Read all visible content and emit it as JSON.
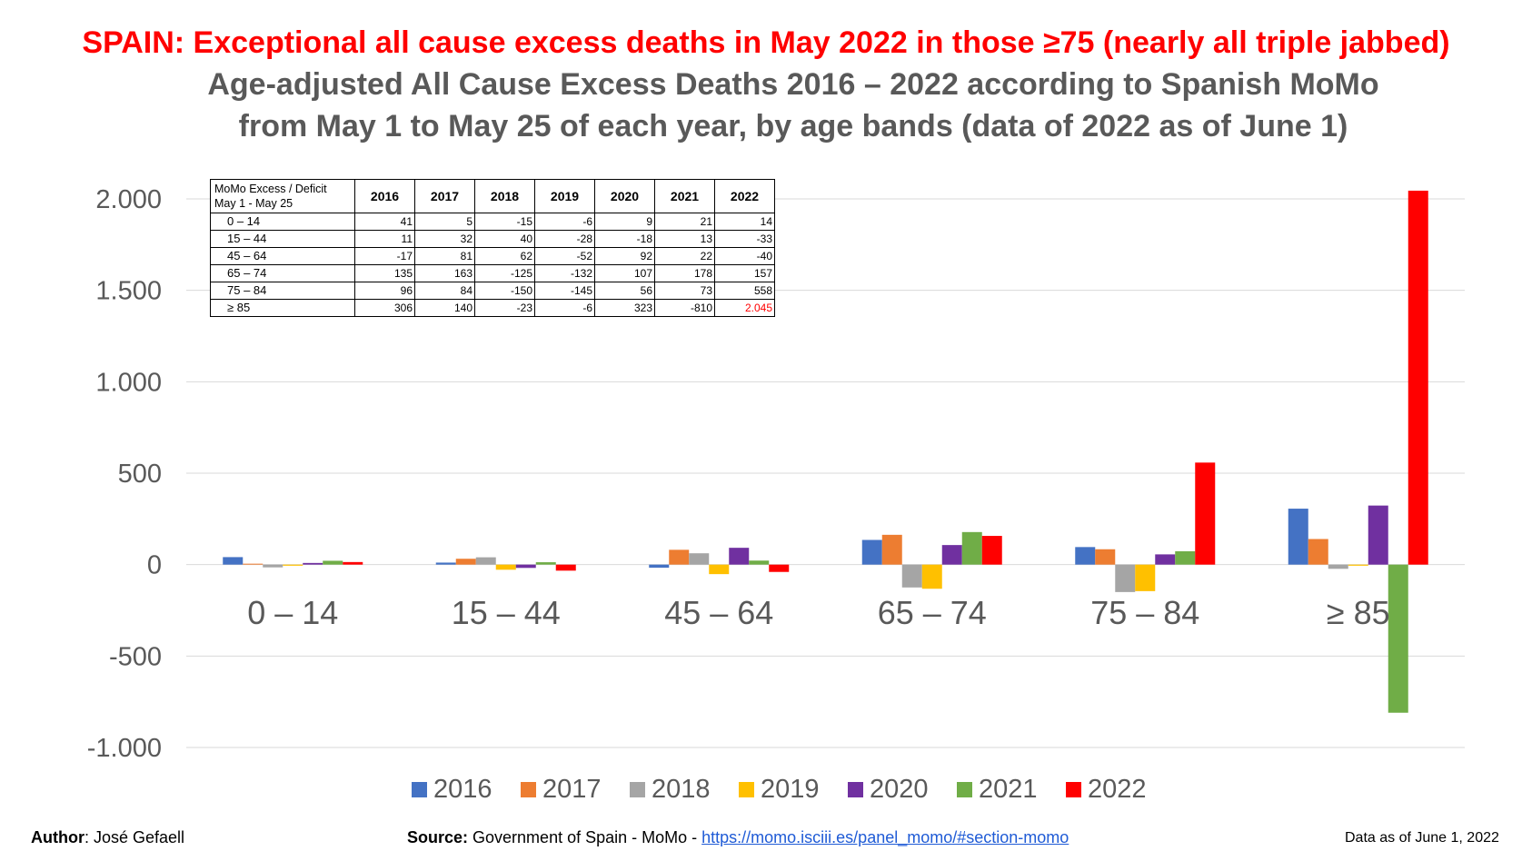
{
  "titles": {
    "line1": "SPAIN: Exceptional all cause excess deaths in May 2022 in those ≥75 (nearly all triple jabbed)",
    "line2": "Age-adjusted All Cause Excess Deaths 2016 – 2022 according to Spanish MoMo",
    "line3": "from May 1 to May 25 of each year, by age bands (data of 2022 as of June 1)"
  },
  "table": {
    "header_line1": "MoMo Excess / Deficit",
    "header_line2": "May 1 - May 25",
    "years": [
      "2016",
      "2017",
      "2018",
      "2019",
      "2020",
      "2021",
      "2022"
    ],
    "rows": [
      {
        "label": "0 – 14",
        "values": [
          "41",
          "5",
          "-15",
          "-6",
          "9",
          "21",
          "14"
        ]
      },
      {
        "label": "15 – 44",
        "values": [
          "11",
          "32",
          "40",
          "-28",
          "-18",
          "13",
          "-33"
        ]
      },
      {
        "label": "45 – 64",
        "values": [
          "-17",
          "81",
          "62",
          "-52",
          "92",
          "22",
          "-40"
        ]
      },
      {
        "label": "65 – 74",
        "values": [
          "135",
          "163",
          "-125",
          "-132",
          "107",
          "178",
          "157"
        ]
      },
      {
        "label": "75 – 84",
        "values": [
          "96",
          "84",
          "-150",
          "-145",
          "56",
          "73",
          "558"
        ]
      },
      {
        "label": "≥ 85",
        "values": [
          "306",
          "140",
          "-23",
          "-6",
          "323",
          "-810",
          "2.045"
        ]
      }
    ]
  },
  "chart_data": {
    "type": "bar",
    "categories": [
      "0 – 14",
      "15 – 44",
      "45 – 64",
      "65 – 74",
      "75 – 84",
      "≥ 85"
    ],
    "series": [
      {
        "name": "2016",
        "color": "#4472c4",
        "values": [
          41,
          11,
          -17,
          135,
          96,
          306
        ]
      },
      {
        "name": "2017",
        "color": "#ed7d31",
        "values": [
          5,
          32,
          81,
          163,
          84,
          140
        ]
      },
      {
        "name": "2018",
        "color": "#a5a5a5",
        "values": [
          -15,
          40,
          62,
          -125,
          -150,
          -23
        ]
      },
      {
        "name": "2019",
        "color": "#ffc000",
        "values": [
          -6,
          -28,
          -52,
          -132,
          -145,
          -6
        ]
      },
      {
        "name": "2020",
        "color": "#7030a0",
        "values": [
          9,
          -18,
          92,
          107,
          56,
          323
        ]
      },
      {
        "name": "2021",
        "color": "#70ad47",
        "values": [
          21,
          13,
          22,
          178,
          73,
          -810
        ]
      },
      {
        "name": "2022",
        "color": "#ff0000",
        "values": [
          14,
          -33,
          -40,
          157,
          558,
          2045
        ]
      }
    ],
    "yticks": [
      2000,
      1500,
      1000,
      500,
      0,
      -500,
      -1000
    ],
    "ytick_labels": [
      "2.000",
      "1.500",
      "1.000",
      "500",
      "0",
      "-500",
      "-1.000"
    ],
    "ylim": [
      -1000,
      2000
    ],
    "grid": true,
    "legend": "bottom"
  },
  "footer": {
    "author_label": "Author",
    "author_name": ": José Gefaell",
    "source_label": "Source:",
    "source_text": " Government of Spain - MoMo - ",
    "source_url": "https://momo.isciii.es/panel_momo/#section-momo",
    "date": "Data as of June 1, 2022"
  }
}
